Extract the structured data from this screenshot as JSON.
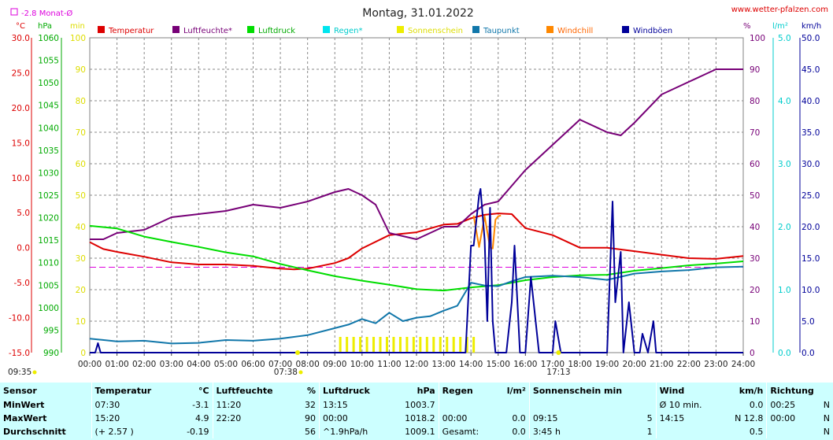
{
  "header": {
    "title": "Montag, 31.01.2022",
    "site": "www.wetter-pfalzen.com",
    "monthly_avg": "-2.8 Monat-Ø"
  },
  "axis_units": {
    "temp": "°C",
    "pressure": "hPa",
    "sun": "min",
    "humidity": "%",
    "rain": "l/m²",
    "wind": "km/h"
  },
  "legend": [
    {
      "name": "Temperatur",
      "color": "#dd0000",
      "label_color": "#dd0000"
    },
    {
      "name": "Luftfeuchte*",
      "color": "#770077",
      "label_color": "#770077"
    },
    {
      "name": "Luftdruck",
      "color": "#00dd00",
      "label_color": "#00aa00"
    },
    {
      "name": "Regen*",
      "color": "#00e5ee",
      "label_color": "#00cccc"
    },
    {
      "name": "Sonnenschein",
      "color": "#eeee00",
      "label_color": "#dddd00"
    },
    {
      "name": "Taupunkt",
      "color": "#1177aa",
      "label_color": "#1177aa"
    },
    {
      "name": "Windchill",
      "color": "#ff8800",
      "label_color": "#ff6600"
    },
    {
      "name": "Windböen",
      "color": "#000099",
      "label_color": "#000099"
    }
  ],
  "markers": {
    "sunrise": "07:38",
    "sunset": "17:13",
    "now": "09:35"
  },
  "chart_data": {
    "type": "line",
    "x_ticks": [
      "00:00",
      "01:00",
      "02:00",
      "03:00",
      "04:00",
      "05:00",
      "06:00",
      "07:00",
      "08:00",
      "09:00",
      "10:00",
      "11:00",
      "12:00",
      "13:00",
      "14:00",
      "15:00",
      "16:00",
      "17:00",
      "18:00",
      "19:00",
      "20:00",
      "21:00",
      "22:00",
      "23:00",
      "24:00"
    ],
    "xlim": [
      0,
      24
    ],
    "axes": {
      "temp": {
        "ticks": [
          "30.0",
          "25.0",
          "20.0",
          "15.0",
          "10.0",
          "5.0",
          "0.0",
          "-5.0",
          "-10.0",
          "-15.0"
        ],
        "range": [
          -15,
          30
        ],
        "color": "#dd0000"
      },
      "pressure": {
        "ticks": [
          "1060",
          "1055",
          "1050",
          "1045",
          "1040",
          "1035",
          "1030",
          "1025",
          "1020",
          "1015",
          "1010",
          "1005",
          "1000",
          "995",
          "990"
        ],
        "range": [
          990,
          1060
        ],
        "color": "#00aa00"
      },
      "sun": {
        "ticks": [
          "100",
          "90",
          "80",
          "70",
          "60",
          "50",
          "40",
          "30",
          "20",
          "10",
          "0"
        ],
        "range": [
          0,
          100
        ],
        "color": "#dddd00"
      },
      "humidity": {
        "ticks": [
          "100",
          "90",
          "80",
          "70",
          "60",
          "50",
          "40",
          "30",
          "20",
          "10",
          "0"
        ],
        "range": [
          0,
          100
        ],
        "color": "#770077"
      },
      "rain": {
        "ticks": [
          "5.0",
          "4.0",
          "3.0",
          "2.0",
          "1.0",
          "0.0"
        ],
        "range": [
          0,
          5
        ],
        "color": "#00cccc"
      },
      "wind": {
        "ticks": [
          "50.0",
          "45.0",
          "40.0",
          "35.0",
          "30.0",
          "25.0",
          "20.0",
          "15.0",
          "10.0",
          "5.0",
          "0.0"
        ],
        "range": [
          0,
          50
        ],
        "color": "#000099"
      }
    },
    "monthly_avg_line": -2.8,
    "series": [
      {
        "name": "Temperatur",
        "axis": "temp",
        "x": [
          0,
          0.5,
          1,
          2,
          3,
          4,
          5,
          6,
          7,
          7.5,
          8,
          9,
          9.5,
          10,
          11,
          12,
          13,
          13.5,
          14,
          14.5,
          15,
          15.5,
          16,
          17,
          18,
          19,
          20,
          21,
          22,
          23,
          24
        ],
        "y": [
          0.8,
          -0.2,
          -0.6,
          -1.3,
          -2.1,
          -2.4,
          -2.4,
          -2.6,
          -3.0,
          -3.1,
          -3.0,
          -2.2,
          -1.5,
          -0.1,
          1.8,
          2.2,
          3.3,
          3.4,
          4.2,
          4.7,
          4.9,
          4.8,
          2.8,
          1.8,
          0.0,
          0.0,
          -0.5,
          -1.0,
          -1.5,
          -1.6,
          -1.2
        ]
      },
      {
        "name": "Luftfeuchte*",
        "axis": "humidity",
        "x": [
          0,
          0.5,
          1,
          2,
          3,
          4,
          5,
          6,
          7,
          8,
          9,
          9.5,
          10,
          10.5,
          11,
          11.5,
          12,
          13,
          13.5,
          14,
          14.5,
          15,
          15.5,
          16,
          17,
          18,
          19,
          19.5,
          20,
          21,
          22,
          23,
          24
        ],
        "y": [
          36,
          36,
          38,
          39,
          43,
          44,
          45,
          47,
          46,
          48,
          51,
          52,
          50,
          47,
          38,
          37,
          36,
          40,
          40,
          44,
          47,
          48,
          53,
          58,
          66,
          74,
          70,
          69,
          73,
          82,
          86,
          90,
          90
        ]
      },
      {
        "name": "Luftdruck",
        "axis": "pressure",
        "x": [
          0,
          1,
          2,
          3,
          4,
          5,
          6,
          7,
          8,
          9,
          10,
          11,
          12,
          13,
          14,
          15,
          16,
          17,
          18,
          19,
          20,
          21,
          22,
          23,
          24
        ],
        "y": [
          1018.2,
          1017.6,
          1015.8,
          1014.6,
          1013.5,
          1012.3,
          1011.4,
          1009.7,
          1008.3,
          1007.0,
          1006.0,
          1005.1,
          1004.1,
          1003.8,
          1004.5,
          1005.0,
          1006.1,
          1006.8,
          1007.2,
          1007.3,
          1008.2,
          1008.8,
          1009.4,
          1009.8,
          1010.3
        ]
      },
      {
        "name": "Taupunkt",
        "axis": "temp",
        "x": [
          0,
          1,
          2,
          3,
          4,
          5,
          6,
          7,
          8,
          9,
          9.5,
          10,
          10.5,
          11,
          11.5,
          12,
          12.5,
          13,
          13.5,
          14,
          14.5,
          15,
          15.5,
          16,
          17,
          18,
          19,
          20,
          21,
          22,
          23,
          24
        ],
        "y": [
          -13.0,
          -13.4,
          -13.3,
          -13.7,
          -13.6,
          -13.2,
          -13.3,
          -13.0,
          -12.5,
          -11.5,
          -11.0,
          -10.2,
          -10.8,
          -9.3,
          -10.5,
          -10.0,
          -9.8,
          -9.0,
          -8.3,
          -5.0,
          -5.4,
          -5.5,
          -4.8,
          -4.2,
          -4.0,
          -4.2,
          -4.6,
          -3.7,
          -3.4,
          -3.2,
          -2.8,
          -2.7
        ]
      },
      {
        "name": "Windchill",
        "axis": "temp",
        "x": [
          14.1,
          14.3,
          14.5,
          14.7,
          14.8,
          14.9,
          15.0,
          15.1
        ],
        "y": [
          4.6,
          0.1,
          4.5,
          0.0,
          -0.1,
          4.0,
          4.5,
          4.6
        ]
      },
      {
        "name": "Windböen",
        "axis": "wind",
        "x": [
          0,
          0.2,
          0.3,
          0.4,
          13.8,
          14.0,
          14.1,
          14.3,
          14.35,
          14.5,
          14.6,
          14.7,
          14.8,
          14.9,
          15.0,
          15.3,
          15.5,
          15.6,
          15.8,
          16.0,
          16.2,
          16.5,
          17.0,
          17.1,
          17.3,
          17.5,
          17.6,
          19.0,
          19.2,
          19.3,
          19.5,
          19.6,
          19.8,
          20.0,
          20.2,
          20.3,
          20.5,
          20.7,
          20.8,
          24.0
        ],
        "y": [
          0,
          0,
          1.5,
          0,
          0,
          17,
          17,
          25,
          26,
          18,
          5,
          23,
          5,
          0,
          0,
          0,
          8,
          17,
          0,
          0,
          12,
          0,
          0,
          5,
          0,
          0,
          0,
          0,
          24,
          8,
          16,
          0,
          8,
          0,
          0,
          3,
          0,
          5,
          0,
          0
        ]
      }
    ],
    "sunshine_bars": {
      "x_start": 9.2,
      "x_end": 14.1,
      "values": [
        5,
        5,
        5,
        5,
        5,
        5,
        5,
        5,
        5,
        5,
        5,
        5,
        5,
        5,
        5,
        5,
        5,
        5,
        5,
        5,
        5
      ]
    }
  },
  "stats": {
    "headers": {
      "sensor": "Sensor",
      "temp": "Temperatur",
      "temp_unit": "°C",
      "hum": "Luftfeuchte",
      "hum_unit": "%",
      "press": "Luftdruck",
      "press_unit": "hPa",
      "rain": "Regen",
      "rain_unit": "l/m²",
      "sun": "Sonnenschein min",
      "wind": "Wind",
      "wind_unit": "km/h",
      "dir": "Richtung"
    },
    "rows": [
      {
        "label": "MinWert",
        "temp_time": "07:30",
        "temp_val": "-3.1",
        "hum_time": "11:20",
        "hum_val": "32",
        "press_time": "13:15",
        "press_val": "1003.7",
        "rain_time": "",
        "rain_val": "",
        "sun_time": "",
        "sun_val": "",
        "wind_time": "Ø 10 min.",
        "wind_val": "0.0",
        "dir_time": "00:25",
        "dir_val": "N"
      },
      {
        "label": "MaxWert",
        "temp_time": "15:20",
        "temp_val": "4.9",
        "hum_time": "22:20",
        "hum_val": "90",
        "press_time": "00:00",
        "press_val": "1018.2",
        "rain_time": "00:00",
        "rain_val": "0.0",
        "sun_time": "09:15",
        "sun_val": "5",
        "wind_time": "14:15",
        "wind_val": "N 12.8",
        "dir_time": "00:00",
        "dir_val": "N"
      },
      {
        "label": "Durchschnitt",
        "temp_time": "(+ 2.57 )",
        "temp_val": "-0.19",
        "hum_time": "",
        "hum_val": "56",
        "press_time": "^1.9hPa/h",
        "press_val": "1009.1",
        "rain_time": "Gesamt:",
        "rain_val": "0.0",
        "sun_time": "3:45 h",
        "sun_val": "1",
        "wind_time": "",
        "wind_val": "0.5",
        "dir_time": "",
        "dir_val": "N"
      }
    ]
  }
}
